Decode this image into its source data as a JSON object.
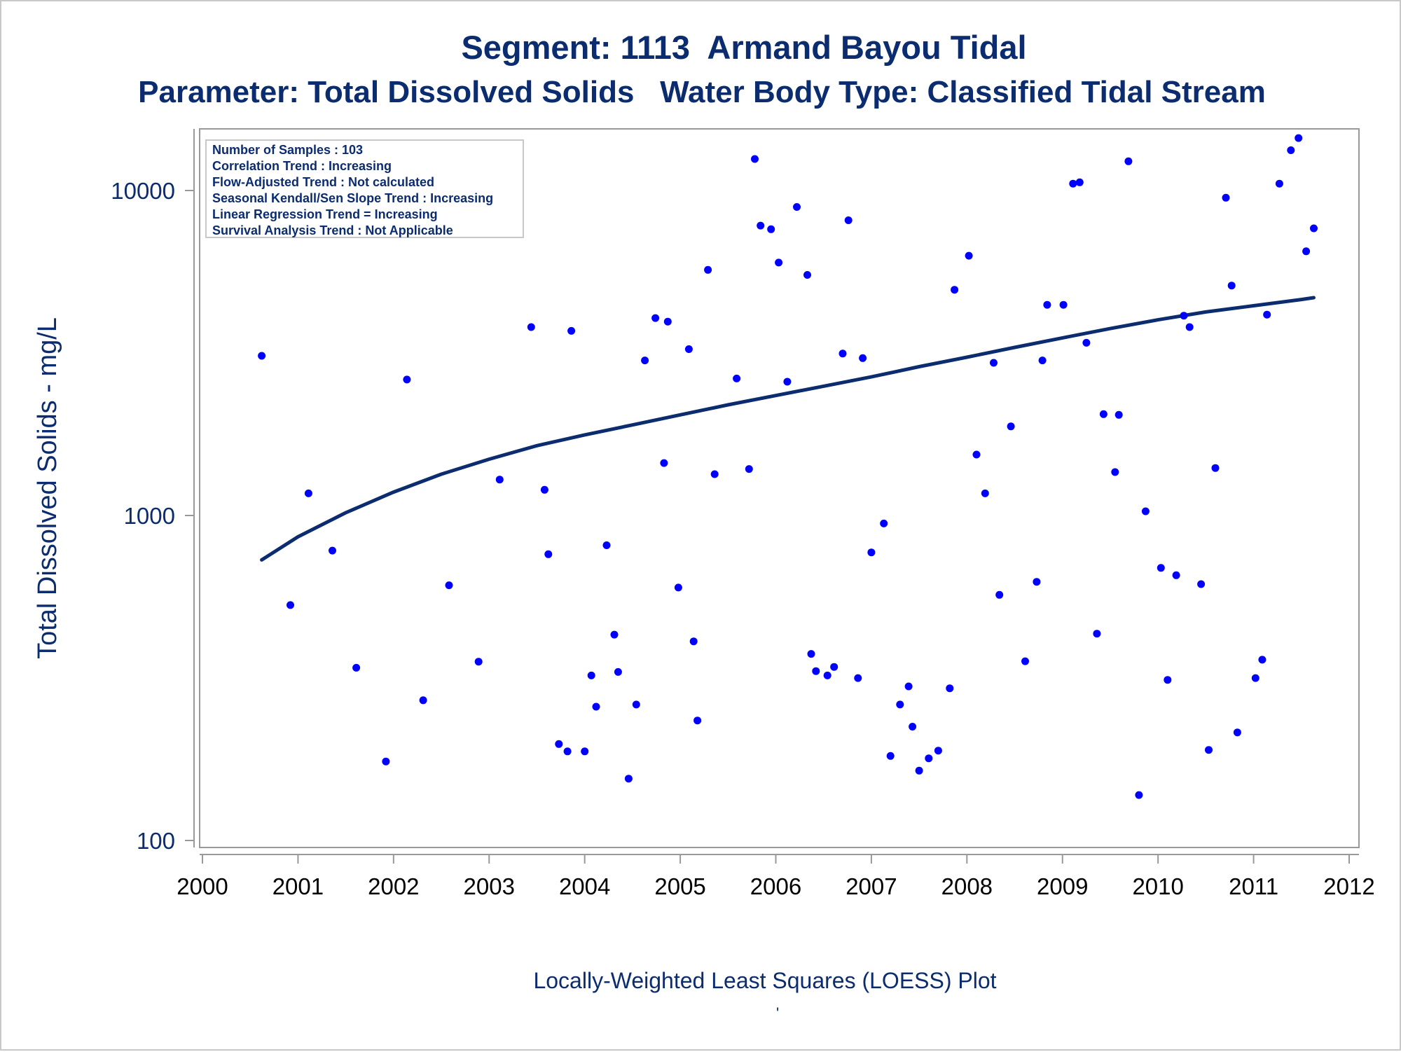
{
  "titles": {
    "line1": "Segment: 1113  Armand Bayou Tidal",
    "line2": "Parameter: Total Dissolved Solids   Water Body Type: Classified Tidal Stream"
  },
  "stats_box": {
    "lines": [
      "Number of Samples : 103",
      "Correlation Trend : Increasing",
      "Flow-Adjusted Trend : Not calculated",
      "Seasonal Kendall/Sen Slope Trend : Increasing",
      "Linear Regression Trend = Increasing",
      "Survival Analysis Trend : Not Applicable"
    ]
  },
  "footnote": "Locally-Weighted Least Squares (LOESS) Plot",
  "footnote_mark": "'",
  "colors": {
    "text": "#0b2c6f",
    "points": "#0000ff",
    "loess_line": "#0b2c6f",
    "axis_frame": "#999999"
  },
  "chart_data": {
    "type": "scatter",
    "ylabel": "Total Dissolved Solids - mg/L",
    "y_scale": "log",
    "ylim": [
      100,
      14500
    ],
    "yticks": [
      100,
      1000,
      10000
    ],
    "xlim": [
      2000,
      2012
    ],
    "xticks": [
      2000,
      2001,
      2002,
      2003,
      2004,
      2005,
      2006,
      2007,
      2008,
      2009,
      2010,
      2011,
      2012
    ],
    "grid": false,
    "legend": "top-left",
    "series": [
      {
        "type": "scatter",
        "x": [
          2000.62,
          2000.92,
          2001.11,
          2001.36,
          2001.61,
          2001.92,
          2002.14,
          2002.31,
          2002.58,
          2002.89,
          2003.11,
          2003.44,
          2003.58,
          2003.62,
          2003.73,
          2003.82,
          2003.86,
          2004.0,
          2004.07,
          2004.12,
          2004.23,
          2004.31,
          2004.35,
          2004.46,
          2004.54,
          2004.63,
          2004.74,
          2004.83,
          2004.87,
          2004.98,
          2005.09,
          2005.14,
          2005.18,
          2005.29,
          2005.36,
          2005.59,
          2005.72,
          2005.78,
          2005.84,
          2005.95,
          2006.03,
          2006.12,
          2006.22,
          2006.33,
          2006.37,
          2006.42,
          2006.54,
          2006.61,
          2006.7,
          2006.76,
          2006.86,
          2006.91,
          2007.0,
          2007.13,
          2007.2,
          2007.3,
          2007.39,
          2007.43,
          2007.5,
          2007.6,
          2007.7,
          2007.82,
          2007.87,
          2008.02,
          2008.1,
          2008.19,
          2008.28,
          2008.34,
          2008.46,
          2008.61,
          2008.73,
          2008.79,
          2008.84,
          2009.01,
          2009.11,
          2009.18,
          2009.25,
          2009.36,
          2009.43,
          2009.55,
          2009.59,
          2009.69,
          2009.8,
          2009.87,
          2010.03,
          2010.1,
          2010.19,
          2010.27,
          2010.33,
          2010.45,
          2010.53,
          2010.6,
          2010.71,
          2010.77,
          2010.83,
          2011.02,
          2011.09,
          2011.14,
          2011.27,
          2011.39,
          2011.47,
          2011.55,
          2011.63
        ],
        "y": [
          3100,
          530,
          1170,
          780,
          340,
          175,
          2620,
          270,
          610,
          355,
          1290,
          3800,
          1200,
          760,
          198,
          188,
          3700,
          188,
          322,
          258,
          810,
          430,
          330,
          155,
          262,
          3000,
          4050,
          1450,
          3950,
          600,
          3250,
          410,
          234,
          5700,
          1340,
          2640,
          1390,
          12500,
          7800,
          7600,
          6000,
          2580,
          8900,
          5500,
          375,
          332,
          322,
          342,
          3150,
          8100,
          316,
          3050,
          770,
          945,
          182,
          262,
          298,
          224,
          164,
          179,
          189,
          294,
          4950,
          6300,
          1540,
          1170,
          2950,
          570,
          1880,
          356,
          625,
          3000,
          4450,
          4450,
          10500,
          10600,
          3400,
          433,
          2050,
          1360,
          2040,
          12300,
          138,
          1030,
          690,
          312,
          655,
          4120,
          3800,
          615,
          190,
          1400,
          9500,
          5100,
          215,
          316,
          360,
          4150,
          10500,
          13300,
          14500,
          6500,
          7650
        ]
      },
      {
        "type": "line",
        "name": "LOESS",
        "x": [
          2000.62,
          2001.0,
          2001.5,
          2002.0,
          2002.5,
          2003.0,
          2003.5,
          2004.0,
          2004.5,
          2005.0,
          2005.5,
          2006.0,
          2006.5,
          2007.0,
          2007.5,
          2008.0,
          2008.5,
          2009.0,
          2009.5,
          2010.0,
          2010.5,
          2011.0,
          2011.5,
          2011.63
        ],
        "y": [
          730,
          860,
          1020,
          1180,
          1340,
          1490,
          1640,
          1770,
          1900,
          2040,
          2190,
          2340,
          2500,
          2670,
          2870,
          3070,
          3290,
          3520,
          3760,
          4000,
          4230,
          4420,
          4620,
          4680
        ]
      }
    ]
  }
}
